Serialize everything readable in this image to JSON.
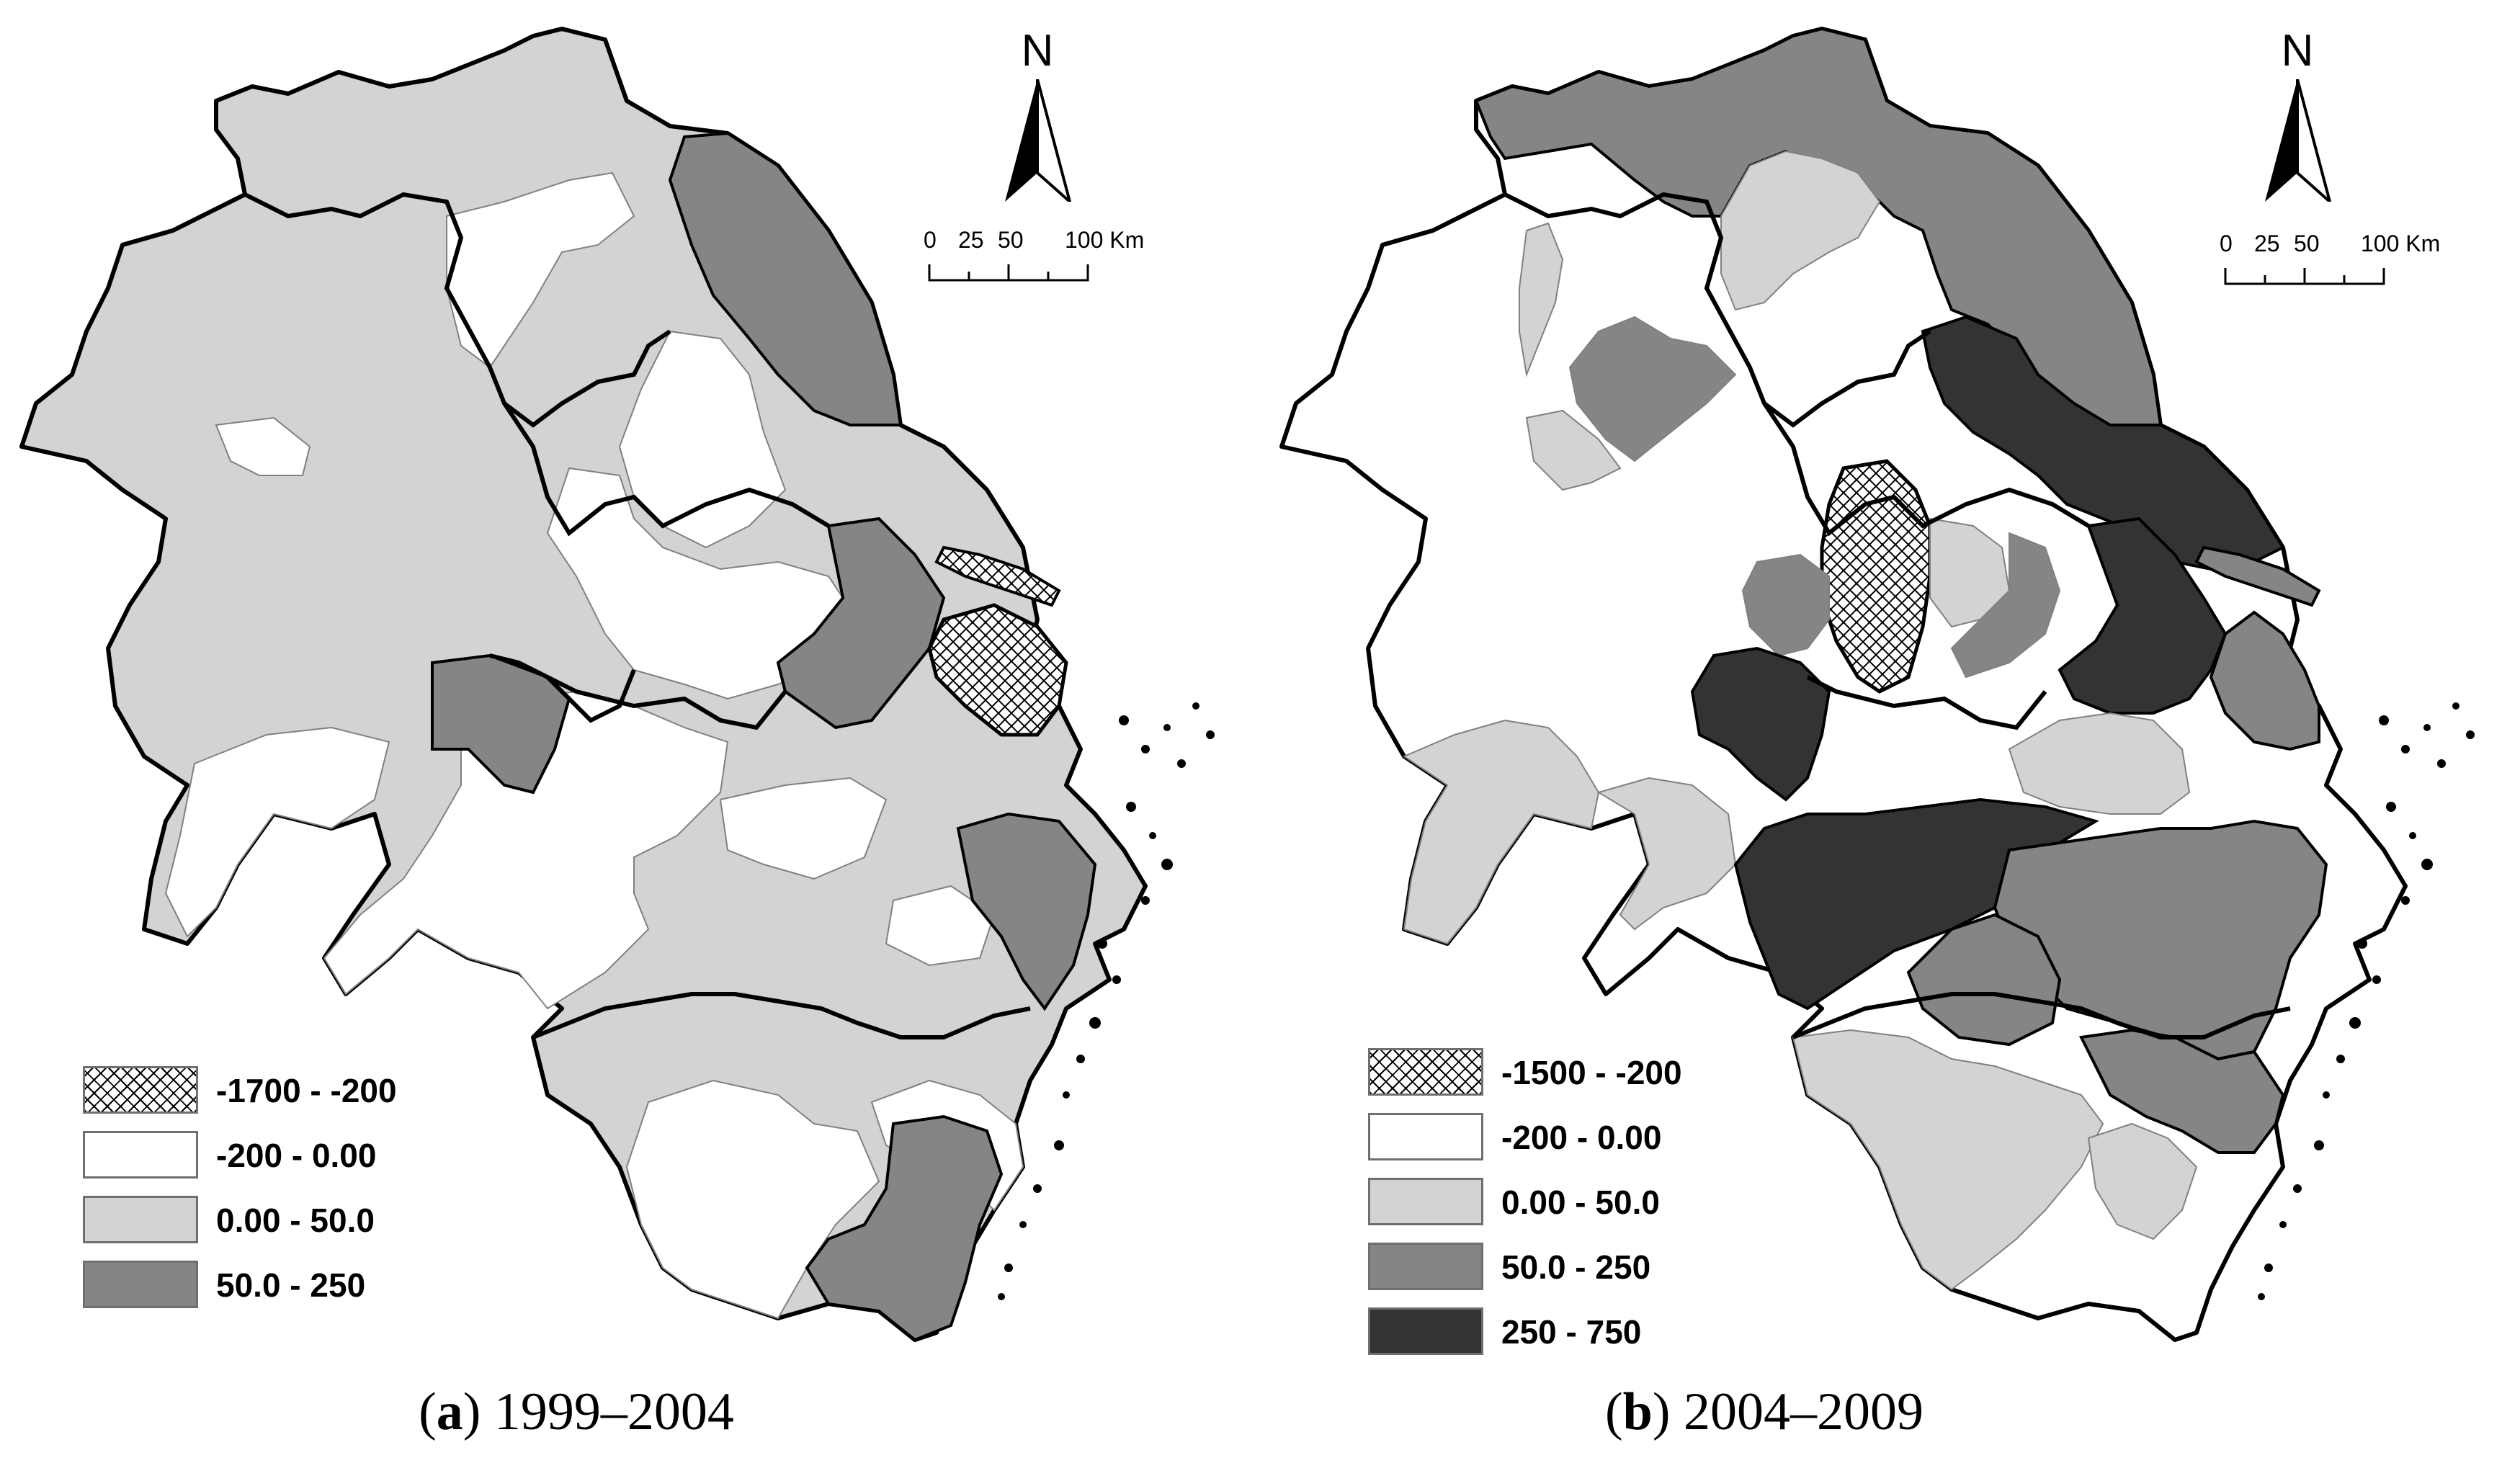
{
  "colors": {
    "white": "#ffffff",
    "light": "#d3d3d3",
    "mid": "#858585",
    "dark": "#333333",
    "hatch": "#000000",
    "outline": "#000000"
  },
  "north_label": "N",
  "scale": {
    "ticks": [
      "0",
      "25",
      "50",
      "100 Km"
    ]
  },
  "panels": [
    {
      "id": "a",
      "caption": {
        "letter": "a",
        "period": "1999–2004"
      },
      "legend": [
        {
          "label": "-1700 - -200",
          "fill": "hatch"
        },
        {
          "label": "-200 - 0.00",
          "fill": "white"
        },
        {
          "label": "0.00 - 50.0",
          "fill": "light"
        },
        {
          "label": "50.0 - 250",
          "fill": "mid"
        }
      ]
    },
    {
      "id": "b",
      "caption": {
        "letter": "b",
        "period": "2004–2009"
      },
      "legend": [
        {
          "label": "-1500 - -200",
          "fill": "hatch"
        },
        {
          "label": "-200 - 0.00",
          "fill": "white"
        },
        {
          "label": "0.00 - 50.0",
          "fill": "light"
        },
        {
          "label": "50.0 - 250",
          "fill": "mid"
        },
        {
          "label": "250 - 750",
          "fill": "dark"
        }
      ]
    }
  ]
}
